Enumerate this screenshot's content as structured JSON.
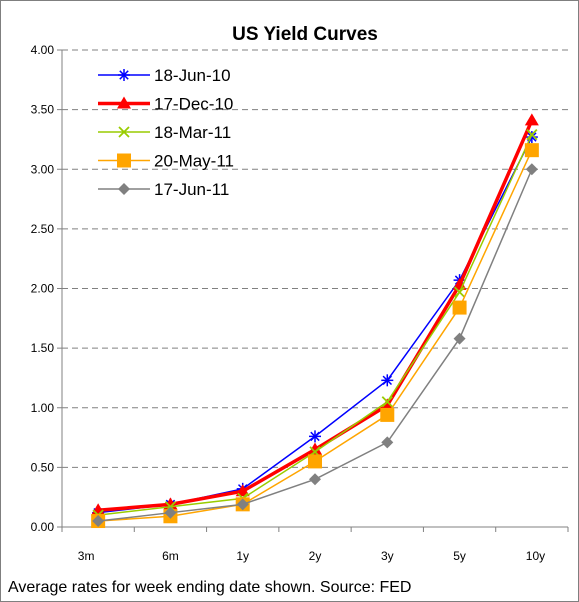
{
  "chart_data": {
    "type": "line",
    "title": "US Yield Curves",
    "categories": [
      "3m",
      "6m",
      "1y",
      "2y",
      "3y",
      "5y",
      "10y"
    ],
    "ylim": [
      0,
      4
    ],
    "yticks": [
      "0.00",
      "0.50",
      "1.00",
      "1.50",
      "2.00",
      "2.50",
      "3.00",
      "3.50",
      "4.00"
    ],
    "grid": "horizontal dashed",
    "legend_position": "top-left",
    "footnote": "Average rates for week ending date shown. Source: FED",
    "series": [
      {
        "name": "18-Jun-10",
        "color": "#0000ff",
        "marker": "star",
        "values": [
          0.12,
          0.19,
          0.32,
          0.76,
          1.23,
          2.07,
          3.27
        ]
      },
      {
        "name": "17-Dec-10",
        "color": "#ff0000",
        "marker": "triangle",
        "values": [
          0.14,
          0.19,
          0.3,
          0.65,
          1.02,
          2.03,
          3.41
        ]
      },
      {
        "name": "18-Mar-11",
        "color": "#99cc00",
        "marker": "x",
        "values": [
          0.1,
          0.17,
          0.24,
          0.63,
          1.05,
          1.97,
          3.29
        ]
      },
      {
        "name": "20-May-11",
        "color": "#ffa500",
        "marker": "square",
        "values": [
          0.05,
          0.09,
          0.19,
          0.55,
          0.94,
          1.84,
          3.16
        ]
      },
      {
        "name": "17-Jun-11",
        "color": "#808080",
        "marker": "diamond",
        "values": [
          0.05,
          0.12,
          0.19,
          0.4,
          0.71,
          1.58,
          3.0
        ]
      }
    ]
  }
}
